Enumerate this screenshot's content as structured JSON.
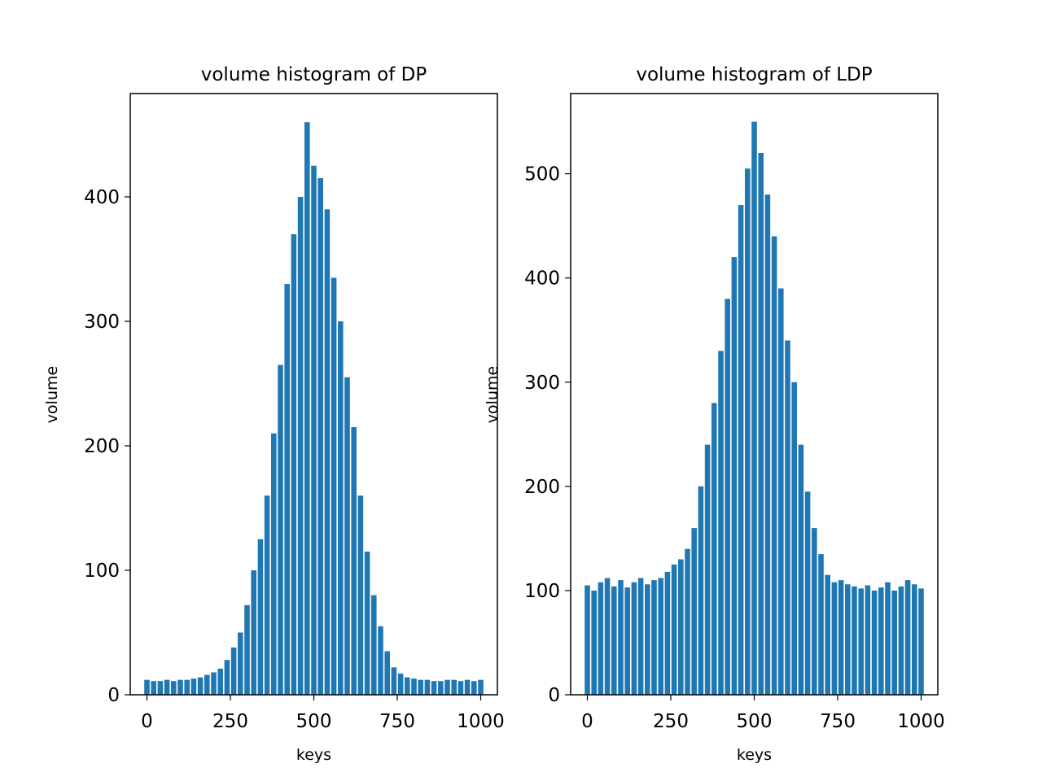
{
  "style": {
    "bar_color": "#1f77b4",
    "axes_color": "#000000",
    "background": "#ffffff"
  },
  "chart_data": [
    {
      "type": "bar",
      "title": "volume histogram of DP",
      "xlabel": "keys",
      "ylabel": "volume",
      "xlim": [
        -50,
        1050
      ],
      "ylim": [
        0,
        483
      ],
      "xticks": [
        0,
        250,
        500,
        750,
        1000
      ],
      "yticks": [
        0,
        100,
        200,
        300,
        400
      ],
      "xtick_labels": [
        "0",
        "250",
        "500",
        "750",
        "1000"
      ],
      "ytick_labels": [
        "0",
        "100",
        "200",
        "300",
        "400"
      ],
      "grid": false,
      "legend": "none",
      "x": [
        0,
        20,
        40,
        60,
        80,
        100,
        120,
        140,
        160,
        180,
        200,
        220,
        240,
        260,
        280,
        300,
        320,
        340,
        360,
        380,
        400,
        420,
        440,
        460,
        480,
        500,
        520,
        540,
        560,
        580,
        600,
        620,
        640,
        660,
        680,
        700,
        720,
        740,
        760,
        780,
        800,
        820,
        840,
        860,
        880,
        900,
        920,
        940,
        960,
        980,
        1000
      ],
      "values": [
        12,
        11,
        11,
        12,
        11,
        12,
        12,
        13,
        14,
        16,
        18,
        21,
        28,
        38,
        50,
        72,
        100,
        125,
        160,
        210,
        265,
        330,
        370,
        400,
        460,
        425,
        415,
        390,
        335,
        300,
        255,
        215,
        160,
        115,
        80,
        55,
        35,
        22,
        17,
        14,
        13,
        12,
        12,
        11,
        11,
        12,
        12,
        11,
        12,
        11,
        12
      ]
    },
    {
      "type": "bar",
      "title": "volume histogram of LDP",
      "xlabel": "keys",
      "ylabel": "volume",
      "xlim": [
        -50,
        1050
      ],
      "ylim": [
        0,
        577
      ],
      "xticks": [
        0,
        250,
        500,
        750,
        1000
      ],
      "yticks": [
        0,
        100,
        200,
        300,
        400,
        500
      ],
      "xtick_labels": [
        "0",
        "250",
        "500",
        "750",
        "1000"
      ],
      "ytick_labels": [
        "0",
        "100",
        "200",
        "300",
        "400",
        "500"
      ],
      "grid": false,
      "legend": "none",
      "x": [
        0,
        20,
        40,
        60,
        80,
        100,
        120,
        140,
        160,
        180,
        200,
        220,
        240,
        260,
        280,
        300,
        320,
        340,
        360,
        380,
        400,
        420,
        440,
        460,
        480,
        500,
        520,
        540,
        560,
        580,
        600,
        620,
        640,
        660,
        680,
        700,
        720,
        740,
        760,
        780,
        800,
        820,
        840,
        860,
        880,
        900,
        920,
        940,
        960,
        980,
        1000
      ],
      "values": [
        105,
        100,
        108,
        112,
        104,
        110,
        103,
        108,
        112,
        106,
        110,
        112,
        118,
        125,
        130,
        140,
        160,
        200,
        240,
        280,
        330,
        380,
        420,
        470,
        505,
        550,
        520,
        480,
        440,
        390,
        340,
        300,
        240,
        195,
        160,
        135,
        115,
        108,
        110,
        106,
        104,
        102,
        105,
        100,
        103,
        108,
        100,
        104,
        110,
        106,
        102
      ]
    }
  ]
}
